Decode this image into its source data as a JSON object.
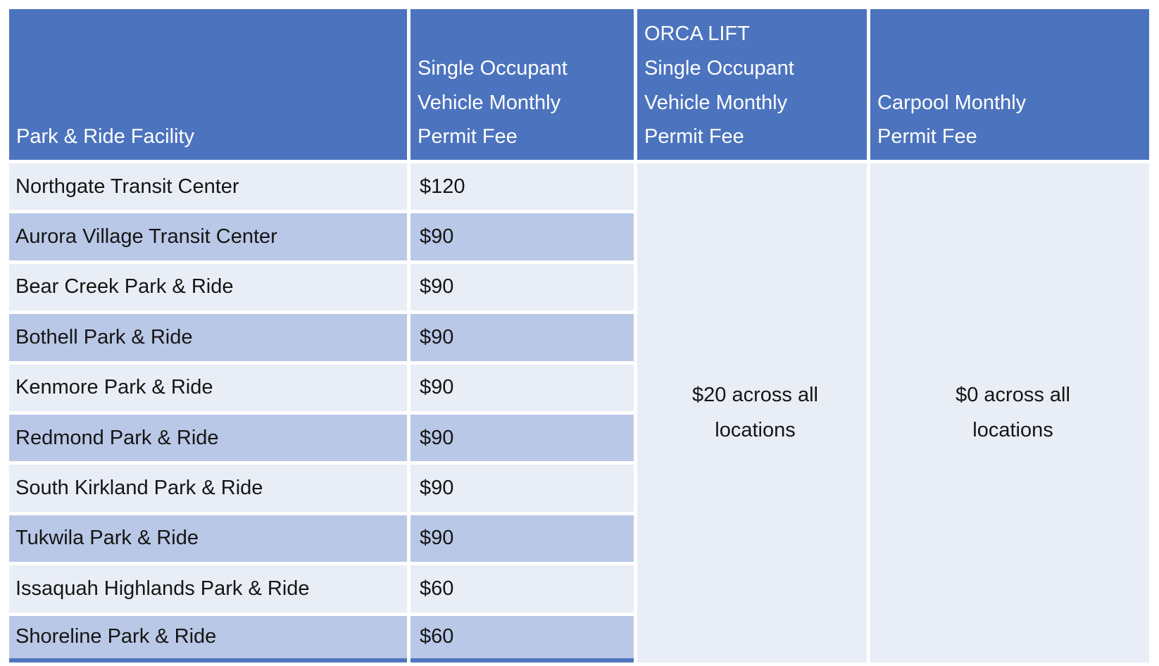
{
  "table": {
    "colors": {
      "header_bg": "#4C73BE",
      "header_text": "#FFFFFF",
      "band_light": "#E9EDF5",
      "band_dark": "#B9C8E6",
      "gridline": "#FFFFFF",
      "bottom_border": "#4E76C0",
      "body_text": "#151515"
    },
    "columns": [
      {
        "label": "Park & Ride Facility"
      },
      {
        "label": "Single Occupant\nVehicle Monthly\nPermit Fee"
      },
      {
        "label": "ORCA LIFT\nSingle Occupant\nVehicle Monthly\nPermit Fee"
      },
      {
        "label": "Carpool Monthly\nPermit Fee"
      }
    ],
    "rows": [
      {
        "facility": "Northgate Transit Center",
        "sov_fee": "$120"
      },
      {
        "facility": "Aurora Village Transit Center",
        "sov_fee": "$90"
      },
      {
        "facility": "Bear Creek Park & Ride",
        "sov_fee": "$90"
      },
      {
        "facility": "Bothell Park & Ride",
        "sov_fee": "$90"
      },
      {
        "facility": "Kenmore Park & Ride",
        "sov_fee": "$90"
      },
      {
        "facility": "Redmond Park & Ride",
        "sov_fee": "$90"
      },
      {
        "facility": "South Kirkland Park & Ride",
        "sov_fee": "$90"
      },
      {
        "facility": "Tukwila Park & Ride",
        "sov_fee": "$90"
      },
      {
        "facility": "Issaquah Highlands Park & Ride",
        "sov_fee": "$60"
      },
      {
        "facility": "Shoreline Park & Ride",
        "sov_fee": "$60"
      }
    ],
    "merged": {
      "orca_lift_fee": "$20 across all\nlocations",
      "carpool_fee": "$0 across all\nlocations"
    }
  }
}
